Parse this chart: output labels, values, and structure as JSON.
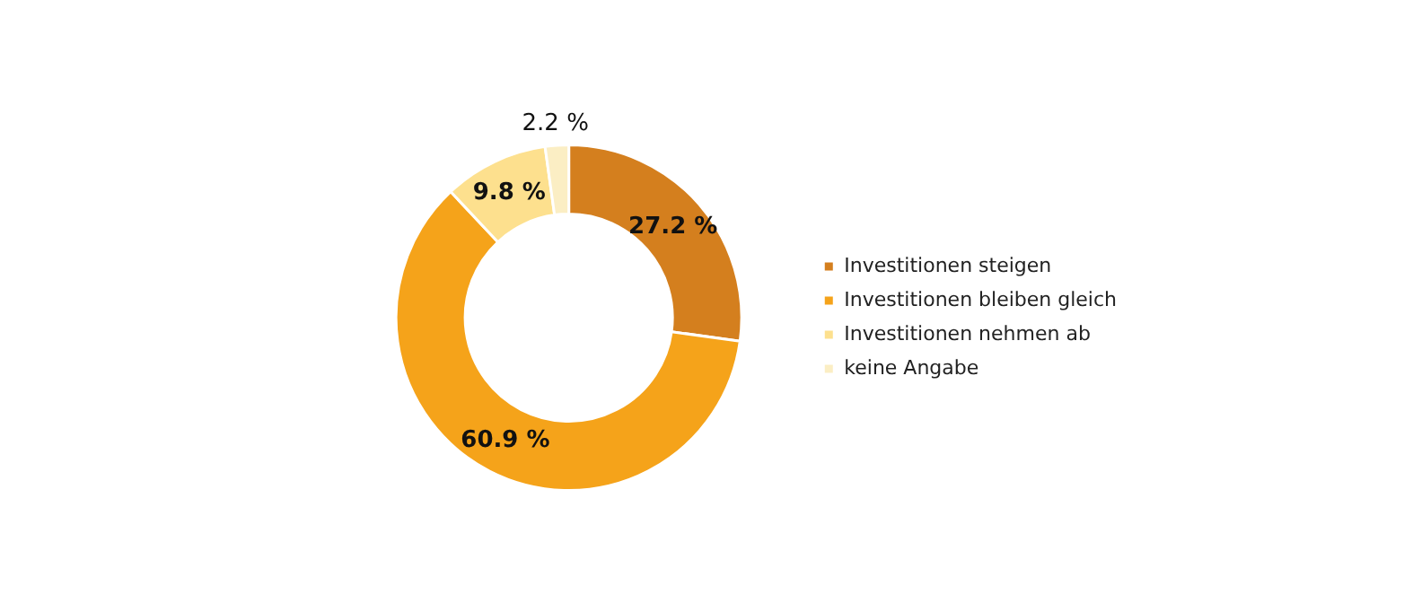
{
  "chart_data": {
    "type": "donut",
    "categories": [
      "Investitionen steigen",
      "Investitionen bleiben gleich",
      "Investitionen nehmen ab",
      "keine Angabe"
    ],
    "values": [
      27.2,
      60.9,
      9.8,
      2.2
    ],
    "colors": [
      "#d47f1e",
      "#f5a31a",
      "#fde08e",
      "#fbeec4"
    ],
    "value_labels": [
      "27.2 %",
      "60.9 %",
      "9.8 %",
      "2.2 %"
    ],
    "legend": "right"
  }
}
